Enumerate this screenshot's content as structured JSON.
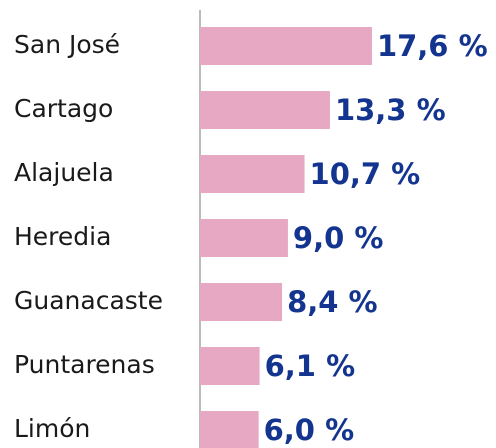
{
  "chart_data": {
    "type": "bar",
    "orientation": "horizontal",
    "categories": [
      "San José",
      "Cartago",
      "Alajuela",
      "Heredia",
      "Guanacaste",
      "Puntarenas",
      "Limón"
    ],
    "values": [
      17.6,
      13.3,
      10.7,
      9.0,
      8.4,
      6.1,
      6.0
    ],
    "value_labels": [
      "17,6 %",
      "13,3 %",
      "10,7 %",
      "9,0 %",
      "8,4 %",
      "6,1 %",
      "6,0 %"
    ],
    "color": "#e6a8c3"
  }
}
